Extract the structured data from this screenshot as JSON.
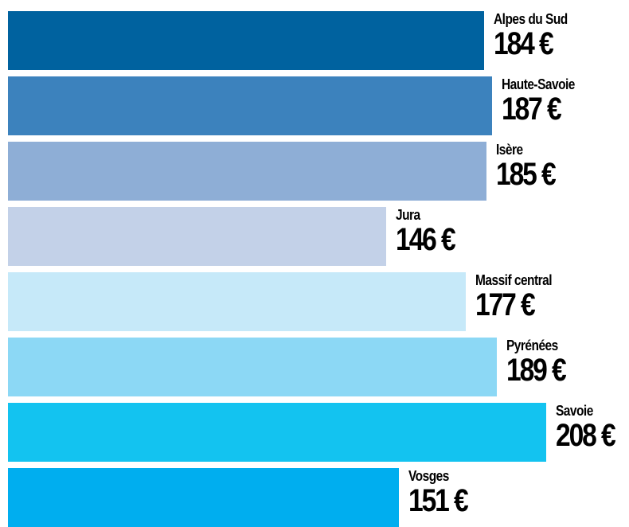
{
  "chart_data": {
    "type": "bar",
    "orientation": "horizontal",
    "unit": "€",
    "xlim": [
      0,
      230
    ],
    "grid": false,
    "categories": [
      "Alpes du Sud",
      "Haute-Savoie",
      "Isère",
      "Jura",
      "Massif central",
      "Pyrénées",
      "Savoie",
      "Vosges"
    ],
    "values": [
      184,
      187,
      185,
      146,
      177,
      189,
      208,
      151
    ],
    "value_labels": [
      "184 €",
      "187 €",
      "185 €",
      "146 €",
      "177 €",
      "189 €",
      "208 €",
      "151 €"
    ],
    "colors": [
      "#00629f",
      "#3c82bd",
      "#8eaed6",
      "#c3d1e8",
      "#c6e9f9",
      "#8cd8f5",
      "#13c3f0",
      "#00aeef"
    ]
  }
}
